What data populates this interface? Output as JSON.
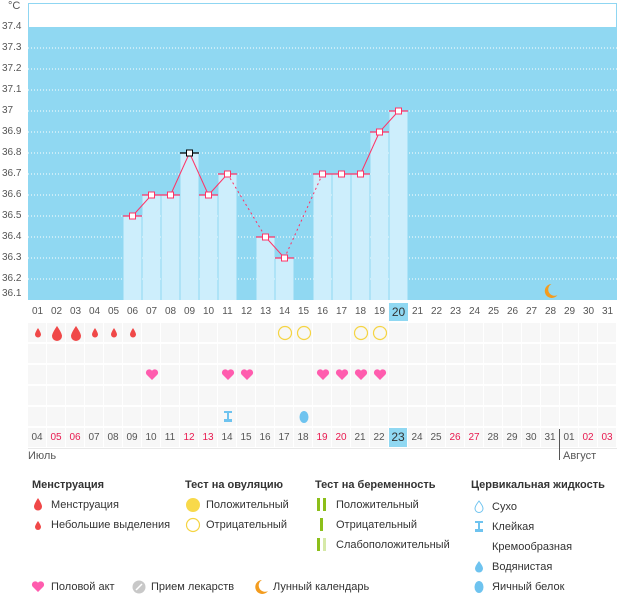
{
  "chart_data": {
    "type": "bar",
    "unit_label": "°C",
    "ylim": [
      36.1,
      37.4
    ],
    "yticks": [
      "36.1",
      "36.2",
      "36.3",
      "36.4",
      "36.5",
      "36.6",
      "36.7",
      "36.8",
      "36.9",
      "37",
      "37.1",
      "37.2",
      "37.3",
      "37.4"
    ],
    "cycle_days": [
      "01",
      "02",
      "03",
      "04",
      "05",
      "06",
      "07",
      "08",
      "09",
      "10",
      "11",
      "12",
      "13",
      "14",
      "15",
      "16",
      "17",
      "18",
      "19",
      "20",
      "21",
      "22",
      "23",
      "24",
      "25",
      "26",
      "27",
      "28",
      "29",
      "30",
      "31"
    ],
    "temperatures": [
      null,
      null,
      null,
      null,
      null,
      36.5,
      36.6,
      36.6,
      36.8,
      36.6,
      36.7,
      null,
      36.4,
      36.3,
      null,
      36.7,
      36.7,
      36.7,
      36.9,
      37.0,
      null,
      null,
      null,
      null,
      null,
      null,
      null,
      null,
      null,
      null,
      null
    ],
    "highlight_marker_day": 9,
    "current_cycle_day": 20,
    "moon_day": 28,
    "grid": true
  },
  "calendar": {
    "dates": [
      "04",
      "05",
      "06",
      "07",
      "08",
      "09",
      "10",
      "11",
      "12",
      "13",
      "14",
      "15",
      "16",
      "17",
      "18",
      "19",
      "20",
      "21",
      "22",
      "23",
      "24",
      "25",
      "26",
      "27",
      "28",
      "29",
      "30",
      "31",
      "01",
      "02",
      "03"
    ],
    "weekend_indexes": [
      1,
      2,
      8,
      9,
      15,
      16,
      22,
      23,
      29,
      30
    ],
    "months": [
      "Июль",
      "Август"
    ],
    "menstruation": {
      "1": "small",
      "2": "big",
      "3": "big",
      "4": "small",
      "5": "small",
      "6": "small"
    },
    "ovulation_negative_days": [
      14,
      15,
      18,
      19
    ],
    "intercourse_days": [
      7,
      11,
      12,
      16,
      17,
      18,
      19
    ],
    "cervical": {
      "11": "sticky",
      "15": "egg-white"
    }
  },
  "legend": {
    "menstruation": {
      "title": "Менструация",
      "items": [
        "Менструация",
        "Небольшие выделения"
      ]
    },
    "ovulation": {
      "title": "Тест на овуляцию",
      "items": [
        "Положительный",
        "Отрицательный"
      ]
    },
    "pregnancy": {
      "title": "Тест на беременность",
      "items": [
        "Положительный",
        "Отрицательный",
        "Слабоположительный"
      ]
    },
    "cervical": {
      "title": "Цервикальная жидкость",
      "items": [
        "Сухо",
        "Клейкая",
        "Кремообразная",
        "Водянистая",
        "Яичный белок"
      ]
    },
    "other": [
      "Половой акт",
      "Прием лекарств",
      "Лунный календарь"
    ]
  },
  "colors": {
    "bg": "#90d8f2",
    "bar": "#cdeefc",
    "line": "#ff3366",
    "blood": "#f04848",
    "heart": "#ff5cae",
    "ovulation": "#f5d442",
    "cervical": "#6ec3ef",
    "moon": "#f39c1f",
    "green": "#8cbf1a"
  }
}
